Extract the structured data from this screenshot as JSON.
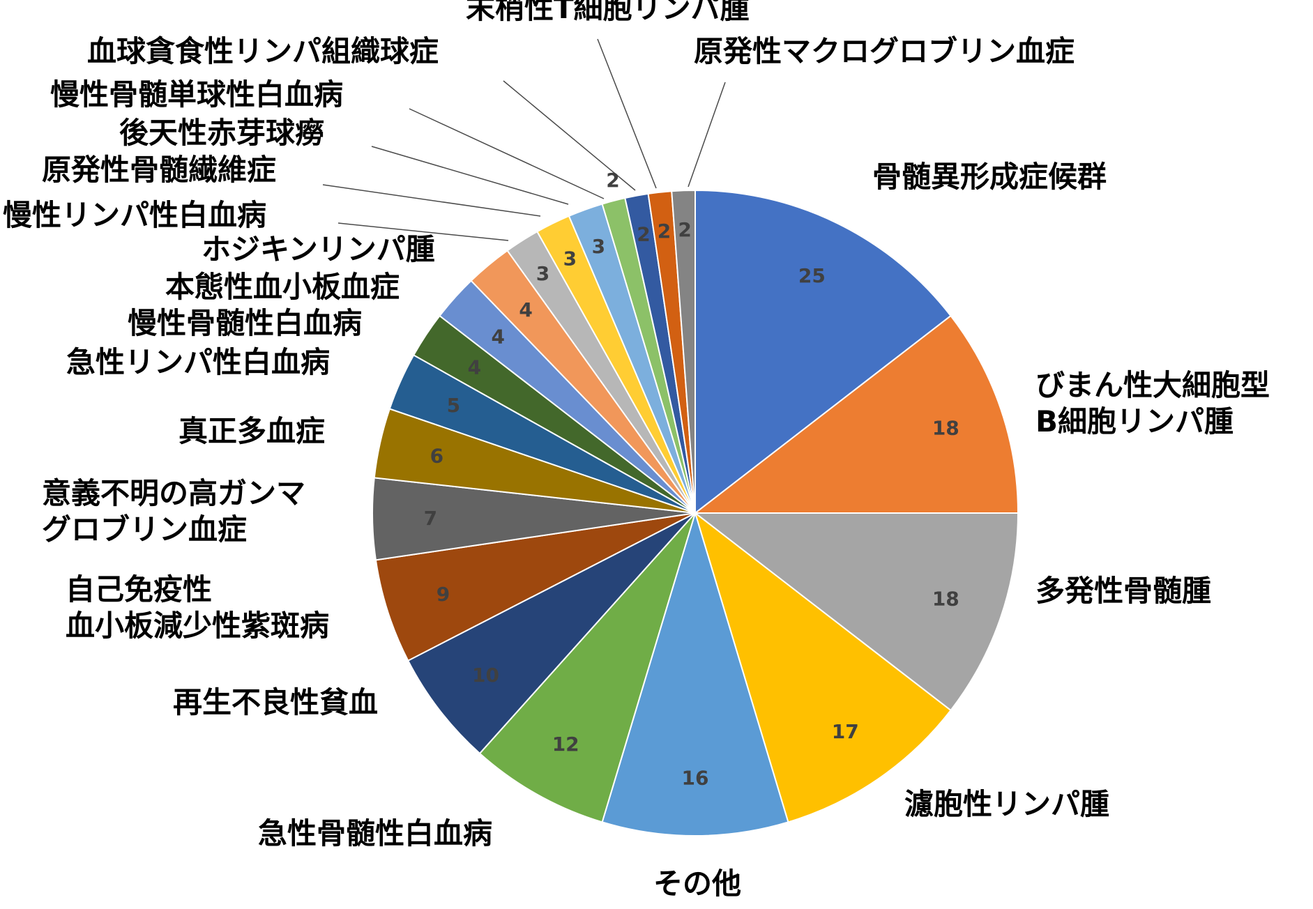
{
  "chart_data": {
    "type": "pie",
    "title": "",
    "values": [
      25,
      18,
      18,
      17,
      16,
      12,
      10,
      9,
      7,
      6,
      5,
      4,
      4,
      4,
      3,
      3,
      3,
      2,
      2,
      2,
      2
    ],
    "categories": [
      "骨髄異形成症候群",
      "びまん性大細胞型\nB細胞リンパ腫",
      "多発性骨髄腫",
      "濾胞性リンパ腫",
      "その他",
      "急性骨髄性白血病",
      "再生不良性貧血",
      "自己免疫性\n血小板減少性紫斑病",
      "意義不明の高ガンマ\nグロブリン血症",
      "真正多血症",
      "急性リンパ性白血病",
      "慢性骨髄性白血病",
      "本態性血小板血症",
      "ホジキンリンパ腫",
      "慢性リンパ性白血病",
      "原発性骨髄繊維症",
      "後天性赤芽球癆",
      "慢性骨髄単球性白血病",
      "血球貪食性リンパ組織球症",
      "末梢性T細胞リンパ腫",
      "原発性マクログロブリン血症"
    ],
    "colors": [
      "#4472C4",
      "#ED7D31",
      "#A5A5A5",
      "#FFC000",
      "#5B9BD5",
      "#70AD47",
      "#264478",
      "#9E480E",
      "#636363",
      "#997300",
      "#255E91",
      "#43682B",
      "#698ED0",
      "#F1975A",
      "#B7B7B7",
      "#FFCD33",
      "#7CAFDD",
      "#8CC168",
      "#335AA1",
      "#D26012",
      "#848484"
    ],
    "start_angle": "12 o'clock",
    "direction": "clockwise",
    "legend": "none",
    "data_labels": "values"
  }
}
